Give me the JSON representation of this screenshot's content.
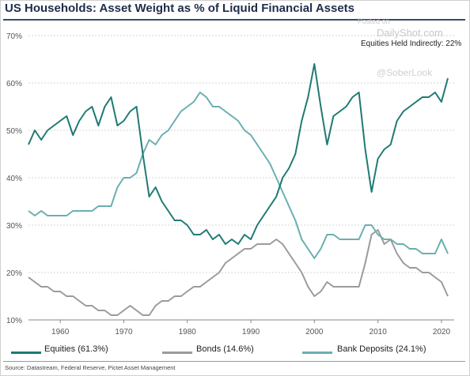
{
  "chart_data": {
    "type": "line",
    "title": "US Households: Asset Weight as % of Liquid Financial Assets",
    "watermark": "Posted on DailyShot.com",
    "watermark_handle": "@SoberLook",
    "annotation": "Equities Held Indirectly: 22%",
    "source": "Source: Datastream, Federal Reserve, Pictet Asset Management",
    "xlim": [
      1955,
      2022
    ],
    "ylim": [
      10,
      70
    ],
    "x_ticks": [
      1960,
      1970,
      1980,
      1990,
      2000,
      2010,
      2020
    ],
    "y_ticks": [
      "10%",
      "20%",
      "30%",
      "40%",
      "50%",
      "60%",
      "70%"
    ],
    "grid": "horizontal",
    "legend_position": "bottom",
    "series": [
      {
        "name": "Equities (61.3%)",
        "color": "#1f7a72",
        "points": [
          [
            1955,
            47
          ],
          [
            1956,
            50
          ],
          [
            1957,
            48
          ],
          [
            1958,
            50
          ],
          [
            1959,
            51
          ],
          [
            1960,
            52
          ],
          [
            1961,
            53
          ],
          [
            1962,
            49
          ],
          [
            1963,
            52
          ],
          [
            1964,
            54
          ],
          [
            1965,
            55
          ],
          [
            1966,
            51
          ],
          [
            1967,
            55
          ],
          [
            1968,
            57
          ],
          [
            1969,
            51
          ],
          [
            1970,
            52
          ],
          [
            1971,
            54
          ],
          [
            1972,
            55
          ],
          [
            1973,
            45
          ],
          [
            1974,
            36
          ],
          [
            1975,
            38
          ],
          [
            1976,
            35
          ],
          [
            1977,
            33
          ],
          [
            1978,
            31
          ],
          [
            1979,
            31
          ],
          [
            1980,
            30
          ],
          [
            1981,
            28
          ],
          [
            1982,
            28
          ],
          [
            1983,
            29
          ],
          [
            1984,
            27
          ],
          [
            1985,
            28
          ],
          [
            1986,
            26
          ],
          [
            1987,
            27
          ],
          [
            1988,
            26
          ],
          [
            1989,
            28
          ],
          [
            1990,
            27
          ],
          [
            1991,
            30
          ],
          [
            1992,
            32
          ],
          [
            1993,
            34
          ],
          [
            1994,
            36
          ],
          [
            1995,
            40
          ],
          [
            1996,
            42
          ],
          [
            1997,
            45
          ],
          [
            1998,
            52
          ],
          [
            1999,
            57
          ],
          [
            2000,
            64
          ],
          [
            2001,
            55
          ],
          [
            2002,
            47
          ],
          [
            2003,
            53
          ],
          [
            2004,
            54
          ],
          [
            2005,
            55
          ],
          [
            2006,
            57
          ],
          [
            2007,
            58
          ],
          [
            2008,
            46
          ],
          [
            2009,
            37
          ],
          [
            2010,
            44
          ],
          [
            2011,
            46
          ],
          [
            2012,
            47
          ],
          [
            2013,
            52
          ],
          [
            2014,
            54
          ],
          [
            2015,
            55
          ],
          [
            2016,
            56
          ],
          [
            2017,
            57
          ],
          [
            2018,
            57
          ],
          [
            2019,
            58
          ],
          [
            2020,
            56
          ],
          [
            2021,
            61
          ]
        ]
      },
      {
        "name": "Bonds (14.6%)",
        "color": "#9b9b9b",
        "points": [
          [
            1955,
            19
          ],
          [
            1956,
            18
          ],
          [
            1957,
            17
          ],
          [
            1958,
            17
          ],
          [
            1959,
            16
          ],
          [
            1960,
            16
          ],
          [
            1961,
            15
          ],
          [
            1962,
            15
          ],
          [
            1963,
            14
          ],
          [
            1964,
            13
          ],
          [
            1965,
            13
          ],
          [
            1966,
            12
          ],
          [
            1967,
            12
          ],
          [
            1968,
            11
          ],
          [
            1969,
            11
          ],
          [
            1970,
            12
          ],
          [
            1971,
            13
          ],
          [
            1972,
            12
          ],
          [
            1973,
            11
          ],
          [
            1974,
            11
          ],
          [
            1975,
            13
          ],
          [
            1976,
            14
          ],
          [
            1977,
            14
          ],
          [
            1978,
            15
          ],
          [
            1979,
            15
          ],
          [
            1980,
            16
          ],
          [
            1981,
            17
          ],
          [
            1982,
            17
          ],
          [
            1983,
            18
          ],
          [
            1984,
            19
          ],
          [
            1985,
            20
          ],
          [
            1986,
            22
          ],
          [
            1987,
            23
          ],
          [
            1988,
            24
          ],
          [
            1989,
            25
          ],
          [
            1990,
            25
          ],
          [
            1991,
            26
          ],
          [
            1992,
            26
          ],
          [
            1993,
            26
          ],
          [
            1994,
            27
          ],
          [
            1995,
            26
          ],
          [
            1996,
            24
          ],
          [
            1997,
            22
          ],
          [
            1998,
            20
          ],
          [
            1999,
            17
          ],
          [
            2000,
            15
          ],
          [
            2001,
            16
          ],
          [
            2002,
            18
          ],
          [
            2003,
            17
          ],
          [
            2004,
            17
          ],
          [
            2005,
            17
          ],
          [
            2006,
            17
          ],
          [
            2007,
            17
          ],
          [
            2008,
            22
          ],
          [
            2009,
            28
          ],
          [
            2010,
            29
          ],
          [
            2011,
            26
          ],
          [
            2012,
            27
          ],
          [
            2013,
            24
          ],
          [
            2014,
            22
          ],
          [
            2015,
            21
          ],
          [
            2016,
            21
          ],
          [
            2017,
            20
          ],
          [
            2018,
            20
          ],
          [
            2019,
            19
          ],
          [
            2020,
            18
          ],
          [
            2021,
            15
          ]
        ]
      },
      {
        "name": "Bank Deposits (24.1%)",
        "color": "#6aafb0",
        "points": [
          [
            1955,
            33
          ],
          [
            1956,
            32
          ],
          [
            1957,
            33
          ],
          [
            1958,
            32
          ],
          [
            1959,
            32
          ],
          [
            1960,
            32
          ],
          [
            1961,
            32
          ],
          [
            1962,
            33
          ],
          [
            1963,
            33
          ],
          [
            1964,
            33
          ],
          [
            1965,
            33
          ],
          [
            1966,
            34
          ],
          [
            1967,
            34
          ],
          [
            1968,
            34
          ],
          [
            1969,
            38
          ],
          [
            1970,
            40
          ],
          [
            1971,
            40
          ],
          [
            1972,
            41
          ],
          [
            1973,
            45
          ],
          [
            1974,
            48
          ],
          [
            1975,
            47
          ],
          [
            1976,
            49
          ],
          [
            1977,
            50
          ],
          [
            1978,
            52
          ],
          [
            1979,
            54
          ],
          [
            1980,
            55
          ],
          [
            1981,
            56
          ],
          [
            1982,
            58
          ],
          [
            1983,
            57
          ],
          [
            1984,
            55
          ],
          [
            1985,
            55
          ],
          [
            1986,
            54
          ],
          [
            1987,
            53
          ],
          [
            1988,
            52
          ],
          [
            1989,
            50
          ],
          [
            1990,
            49
          ],
          [
            1991,
            47
          ],
          [
            1992,
            45
          ],
          [
            1993,
            43
          ],
          [
            1994,
            40
          ],
          [
            1995,
            37
          ],
          [
            1996,
            34
          ],
          [
            1997,
            31
          ],
          [
            1998,
            27
          ],
          [
            1999,
            25
          ],
          [
            2000,
            23
          ],
          [
            2001,
            25
          ],
          [
            2002,
            28
          ],
          [
            2003,
            28
          ],
          [
            2004,
            27
          ],
          [
            2005,
            27
          ],
          [
            2006,
            27
          ],
          [
            2007,
            27
          ],
          [
            2008,
            30
          ],
          [
            2009,
            30
          ],
          [
            2010,
            28
          ],
          [
            2011,
            27
          ],
          [
            2012,
            27
          ],
          [
            2013,
            26
          ],
          [
            2014,
            26
          ],
          [
            2015,
            25
          ],
          [
            2016,
            25
          ],
          [
            2017,
            24
          ],
          [
            2018,
            24
          ],
          [
            2019,
            24
          ],
          [
            2020,
            27
          ],
          [
            2021,
            24
          ]
        ]
      }
    ]
  }
}
